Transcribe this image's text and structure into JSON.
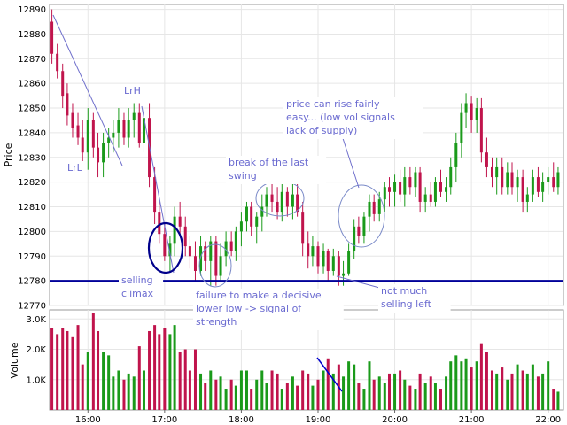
{
  "chart_data": {
    "type": "candlestick",
    "panels": [
      {
        "name": "price",
        "ylabel": "Price",
        "ylim": [
          12770,
          12892
        ],
        "yticks": [
          "12770",
          "12780",
          "12790",
          "12800",
          "12810",
          "12820",
          "12830",
          "12840",
          "12850",
          "12860",
          "12870",
          "12880",
          "12890"
        ]
      },
      {
        "name": "volume",
        "ylabel": "Volume",
        "ylim": [
          0,
          3300
        ],
        "yticks": [
          {
            "label": "1.0K",
            "value": 1000
          },
          {
            "label": "2.0K",
            "value": 2000
          },
          {
            "label": "3.0K",
            "value": 3000
          }
        ]
      }
    ],
    "x_axis": {
      "ticks": [
        "16:00",
        "17:00",
        "18:00",
        "19:00",
        "20:00",
        "21:00",
        "22:00"
      ],
      "tick_hours": [
        16,
        17,
        18,
        19,
        20,
        21,
        22
      ],
      "xlim_hours": [
        15.5,
        22.2
      ]
    },
    "colors": {
      "up": "#1a9a1a",
      "down": "#c0144c",
      "neutral": "#888888",
      "annotation": "#6a6ad0",
      "level_line": "#000099"
    },
    "reference_lines": [
      {
        "axis": "price",
        "value": 12780,
        "color": "#000099"
      }
    ],
    "bars": [
      {
        "t": 15.53,
        "o": 12885,
        "h": 12890,
        "l": 12868,
        "c": 12872,
        "v": 2700
      },
      {
        "t": 15.6,
        "o": 12872,
        "h": 12876,
        "l": 12862,
        "c": 12865,
        "v": 2500
      },
      {
        "t": 15.67,
        "o": 12865,
        "h": 12868,
        "l": 12850,
        "c": 12855,
        "v": 2700
      },
      {
        "t": 15.73,
        "o": 12856,
        "h": 12860,
        "l": 12843,
        "c": 12847,
        "v": 2600
      },
      {
        "t": 15.8,
        "o": 12848,
        "h": 12852,
        "l": 12838,
        "c": 12842,
        "v": 2400
      },
      {
        "t": 15.87,
        "o": 12843,
        "h": 12848,
        "l": 12835,
        "c": 12838,
        "v": 2800
      },
      {
        "t": 15.93,
        "o": 12838,
        "h": 12845,
        "l": 12828,
        "c": 12832,
        "v": 1500
      },
      {
        "t": 16.0,
        "o": 12832,
        "h": 12850,
        "l": 12825,
        "c": 12845,
        "v": 1900
      },
      {
        "t": 16.07,
        "o": 12845,
        "h": 12848,
        "l": 12830,
        "c": 12834,
        "v": 3200
      },
      {
        "t": 16.13,
        "o": 12834,
        "h": 12840,
        "l": 12822,
        "c": 12828,
        "v": 2600
      },
      {
        "t": 16.2,
        "o": 12828,
        "h": 12840,
        "l": 12822,
        "c": 12836,
        "v": 1900
      },
      {
        "t": 16.27,
        "o": 12836,
        "h": 12842,
        "l": 12830,
        "c": 12838,
        "v": 1800
      },
      {
        "t": 16.33,
        "o": 12838,
        "h": 12845,
        "l": 12832,
        "c": 12840,
        "v": 1100
      },
      {
        "t": 16.4,
        "o": 12840,
        "h": 12850,
        "l": 12834,
        "c": 12845,
        "v": 1300
      },
      {
        "t": 16.47,
        "o": 12845,
        "h": 12848,
        "l": 12835,
        "c": 12838,
        "v": 1000
      },
      {
        "t": 16.53,
        "o": 12838,
        "h": 12850,
        "l": 12834,
        "c": 12845,
        "v": 1200
      },
      {
        "t": 16.6,
        "o": 12845,
        "h": 12852,
        "l": 12838,
        "c": 12848,
        "v": 1100
      },
      {
        "t": 16.67,
        "o": 12848,
        "h": 12852,
        "l": 12834,
        "c": 12836,
        "v": 2100
      },
      {
        "t": 16.73,
        "o": 12836,
        "h": 12850,
        "l": 12832,
        "c": 12846,
        "v": 1300
      },
      {
        "t": 16.8,
        "o": 12846,
        "h": 12852,
        "l": 12818,
        "c": 12822,
        "v": 2600
      },
      {
        "t": 16.87,
        "o": 12822,
        "h": 12826,
        "l": 12803,
        "c": 12808,
        "v": 2800
      },
      {
        "t": 16.93,
        "o": 12808,
        "h": 12812,
        "l": 12795,
        "c": 12799,
        "v": 2500
      },
      {
        "t": 17.0,
        "o": 12799,
        "h": 12803,
        "l": 12788,
        "c": 12790,
        "v": 2700
      },
      {
        "t": 17.07,
        "o": 12790,
        "h": 12798,
        "l": 12784,
        "c": 12795,
        "v": 2500
      },
      {
        "t": 17.13,
        "o": 12795,
        "h": 12810,
        "l": 12790,
        "c": 12806,
        "v": 2800
      },
      {
        "t": 17.2,
        "o": 12806,
        "h": 12812,
        "l": 12798,
        "c": 12802,
        "v": 1900
      },
      {
        "t": 17.27,
        "o": 12802,
        "h": 12806,
        "l": 12790,
        "c": 12794,
        "v": 2000
      },
      {
        "t": 17.33,
        "o": 12794,
        "h": 12798,
        "l": 12785,
        "c": 12790,
        "v": 1300
      },
      {
        "t": 17.4,
        "o": 12790,
        "h": 12796,
        "l": 12780,
        "c": 12784,
        "v": 2000
      },
      {
        "t": 17.47,
        "o": 12784,
        "h": 12798,
        "l": 12782,
        "c": 12794,
        "v": 1200
      },
      {
        "t": 17.53,
        "o": 12794,
        "h": 12796,
        "l": 12784,
        "c": 12788,
        "v": 900
      },
      {
        "t": 17.6,
        "o": 12788,
        "h": 12798,
        "l": 12778,
        "c": 12796,
        "v": 1300
      },
      {
        "t": 17.67,
        "o": 12796,
        "h": 12798,
        "l": 12778,
        "c": 12782,
        "v": 1000
      },
      {
        "t": 17.73,
        "o": 12782,
        "h": 12795,
        "l": 12780,
        "c": 12790,
        "v": 1100
      },
      {
        "t": 17.8,
        "o": 12790,
        "h": 12800,
        "l": 12786,
        "c": 12796,
        "v": 700
      },
      {
        "t": 17.87,
        "o": 12796,
        "h": 12800,
        "l": 12790,
        "c": 12792,
        "v": 1000
      },
      {
        "t": 17.93,
        "o": 12792,
        "h": 12802,
        "l": 12788,
        "c": 12800,
        "v": 800
      },
      {
        "t": 18.0,
        "o": 12800,
        "h": 12808,
        "l": 12794,
        "c": 12804,
        "v": 1300
      },
      {
        "t": 18.07,
        "o": 12804,
        "h": 12812,
        "l": 12800,
        "c": 12810,
        "v": 1300
      },
      {
        "t": 18.13,
        "o": 12810,
        "h": 12812,
        "l": 12798,
        "c": 12802,
        "v": 700
      },
      {
        "t": 18.2,
        "o": 12802,
        "h": 12808,
        "l": 12795,
        "c": 12806,
        "v": 1000
      },
      {
        "t": 18.27,
        "o": 12806,
        "h": 12815,
        "l": 12800,
        "c": 12810,
        "v": 1300
      },
      {
        "t": 18.33,
        "o": 12810,
        "h": 12818,
        "l": 12806,
        "c": 12815,
        "v": 900
      },
      {
        "t": 18.4,
        "o": 12815,
        "h": 12820,
        "l": 12808,
        "c": 12812,
        "v": 1300
      },
      {
        "t": 18.47,
        "o": 12812,
        "h": 12818,
        "l": 12805,
        "c": 12808,
        "v": 1200
      },
      {
        "t": 18.53,
        "o": 12808,
        "h": 12820,
        "l": 12804,
        "c": 12816,
        "v": 700
      },
      {
        "t": 18.6,
        "o": 12816,
        "h": 12818,
        "l": 12806,
        "c": 12810,
        "v": 900
      },
      {
        "t": 18.67,
        "o": 12810,
        "h": 12820,
        "l": 12805,
        "c": 12815,
        "v": 1100
      },
      {
        "t": 18.73,
        "o": 12815,
        "h": 12820,
        "l": 12806,
        "c": 12808,
        "v": 800
      },
      {
        "t": 18.8,
        "o": 12808,
        "h": 12812,
        "l": 12790,
        "c": 12795,
        "v": 1300
      },
      {
        "t": 18.87,
        "o": 12795,
        "h": 12800,
        "l": 12785,
        "c": 12790,
        "v": 1200
      },
      {
        "t": 18.93,
        "o": 12790,
        "h": 12798,
        "l": 12786,
        "c": 12794,
        "v": 800
      },
      {
        "t": 19.0,
        "o": 12794,
        "h": 12796,
        "l": 12783,
        "c": 12786,
        "v": 1000
      },
      {
        "t": 19.07,
        "o": 12786,
        "h": 12795,
        "l": 12783,
        "c": 12792,
        "v": 1300
      },
      {
        "t": 19.13,
        "o": 12792,
        "h": 12793,
        "l": 12780,
        "c": 12784,
        "v": 1700
      },
      {
        "t": 19.2,
        "o": 12784,
        "h": 12793,
        "l": 12782,
        "c": 12790,
        "v": 1200
      },
      {
        "t": 19.27,
        "o": 12790,
        "h": 12792,
        "l": 12778,
        "c": 12782,
        "v": 1500
      },
      {
        "t": 19.33,
        "o": 12782,
        "h": 12788,
        "l": 12778,
        "c": 12783,
        "v": 1100
      },
      {
        "t": 19.4,
        "o": 12783,
        "h": 12795,
        "l": 12782,
        "c": 12792,
        "v": 1600
      },
      {
        "t": 19.47,
        "o": 12792,
        "h": 12805,
        "l": 12789,
        "c": 12802,
        "v": 1500
      },
      {
        "t": 19.53,
        "o": 12802,
        "h": 12806,
        "l": 12795,
        "c": 12798,
        "v": 900
      },
      {
        "t": 19.6,
        "o": 12798,
        "h": 12808,
        "l": 12795,
        "c": 12806,
        "v": 700
      },
      {
        "t": 19.67,
        "o": 12806,
        "h": 12815,
        "l": 12800,
        "c": 12812,
        "v": 1600
      },
      {
        "t": 19.73,
        "o": 12812,
        "h": 12815,
        "l": 12804,
        "c": 12807,
        "v": 1000
      },
      {
        "t": 19.8,
        "o": 12807,
        "h": 12816,
        "l": 12804,
        "c": 12813,
        "v": 1100
      },
      {
        "t": 19.87,
        "o": 12813,
        "h": 12820,
        "l": 12808,
        "c": 12818,
        "v": 900
      },
      {
        "t": 19.93,
        "o": 12818,
        "h": 12822,
        "l": 12810,
        "c": 12816,
        "v": 1200
      },
      {
        "t": 20.0,
        "o": 12816,
        "h": 12823,
        "l": 12810,
        "c": 12820,
        "v": 1200
      },
      {
        "t": 20.07,
        "o": 12820,
        "h": 12825,
        "l": 12812,
        "c": 12815,
        "v": 1300
      },
      {
        "t": 20.13,
        "o": 12815,
        "h": 12826,
        "l": 12810,
        "c": 12822,
        "v": 1000
      },
      {
        "t": 20.2,
        "o": 12822,
        "h": 12826,
        "l": 12815,
        "c": 12818,
        "v": 800
      },
      {
        "t": 20.27,
        "o": 12818,
        "h": 12826,
        "l": 12814,
        "c": 12824,
        "v": 700
      },
      {
        "t": 20.33,
        "o": 12824,
        "h": 12826,
        "l": 12808,
        "c": 12812,
        "v": 1200
      },
      {
        "t": 20.4,
        "o": 12812,
        "h": 12818,
        "l": 12808,
        "c": 12815,
        "v": 900
      },
      {
        "t": 20.47,
        "o": 12815,
        "h": 12820,
        "l": 12810,
        "c": 12812,
        "v": 1100
      },
      {
        "t": 20.53,
        "o": 12812,
        "h": 12822,
        "l": 12810,
        "c": 12820,
        "v": 900
      },
      {
        "t": 20.6,
        "o": 12820,
        "h": 12825,
        "l": 12814,
        "c": 12816,
        "v": 700
      },
      {
        "t": 20.67,
        "o": 12816,
        "h": 12822,
        "l": 12812,
        "c": 12818,
        "v": 1100
      },
      {
        "t": 20.73,
        "o": 12818,
        "h": 12830,
        "l": 12815,
        "c": 12826,
        "v": 1600
      },
      {
        "t": 20.8,
        "o": 12826,
        "h": 12840,
        "l": 12820,
        "c": 12836,
        "v": 1800
      },
      {
        "t": 20.87,
        "o": 12836,
        "h": 12852,
        "l": 12830,
        "c": 12848,
        "v": 1600
      },
      {
        "t": 20.93,
        "o": 12848,
        "h": 12856,
        "l": 12842,
        "c": 12852,
        "v": 1700
      },
      {
        "t": 21.0,
        "o": 12852,
        "h": 12855,
        "l": 12840,
        "c": 12845,
        "v": 1400
      },
      {
        "t": 21.07,
        "o": 12845,
        "h": 12854,
        "l": 12840,
        "c": 12850,
        "v": 1600
      },
      {
        "t": 21.13,
        "o": 12850,
        "h": 12854,
        "l": 12828,
        "c": 12832,
        "v": 2200
      },
      {
        "t": 21.2,
        "o": 12832,
        "h": 12838,
        "l": 12822,
        "c": 12826,
        "v": 1900
      },
      {
        "t": 21.27,
        "o": 12826,
        "h": 12830,
        "l": 12818,
        "c": 12822,
        "v": 1300
      },
      {
        "t": 21.33,
        "o": 12822,
        "h": 12830,
        "l": 12815,
        "c": 12826,
        "v": 1200
      },
      {
        "t": 21.4,
        "o": 12826,
        "h": 12830,
        "l": 12815,
        "c": 12818,
        "v": 1400
      },
      {
        "t": 21.47,
        "o": 12818,
        "h": 12828,
        "l": 12815,
        "c": 12824,
        "v": 1000
      },
      {
        "t": 21.53,
        "o": 12824,
        "h": 12828,
        "l": 12815,
        "c": 12818,
        "v": 1200
      },
      {
        "t": 21.6,
        "o": 12818,
        "h": 12825,
        "l": 12812,
        "c": 12822,
        "v": 1500
      },
      {
        "t": 21.67,
        "o": 12822,
        "h": 12825,
        "l": 12808,
        "c": 12812,
        "v": 1300
      },
      {
        "t": 21.73,
        "o": 12812,
        "h": 12818,
        "l": 12808,
        "c": 12815,
        "v": 1200
      },
      {
        "t": 21.8,
        "o": 12815,
        "h": 12825,
        "l": 12812,
        "c": 12822,
        "v": 1500
      },
      {
        "t": 21.87,
        "o": 12822,
        "h": 12826,
        "l": 12814,
        "c": 12816,
        "v": 1100
      },
      {
        "t": 21.93,
        "o": 12816,
        "h": 12824,
        "l": 12812,
        "c": 12820,
        "v": 1200
      },
      {
        "t": 22.0,
        "o": 12820,
        "h": 12826,
        "l": 12815,
        "c": 12822,
        "v": 1600
      },
      {
        "t": 22.07,
        "o": 12822,
        "h": 12828,
        "l": 12816,
        "c": 12818,
        "v": 700
      },
      {
        "t": 22.13,
        "o": 12818,
        "h": 12826,
        "l": 12815,
        "c": 12824,
        "v": 600
      }
    ],
    "annotations": [
      {
        "name": "anno-lrl",
        "lines": [
          "LrL"
        ]
      },
      {
        "name": "anno-lrh",
        "lines": [
          "LrH"
        ]
      },
      {
        "name": "anno-selling-climax",
        "lines": [
          "selling",
          "climax"
        ]
      },
      {
        "name": "anno-failure-decisive",
        "lines": [
          "failure to make a decisive",
          "lower low -> signal of",
          "strength"
        ]
      },
      {
        "name": "anno-break-last-swing",
        "lines": [
          "break of the last",
          "swing"
        ]
      },
      {
        "name": "anno-price-rise",
        "lines": [
          "price can rise fairly",
          "easy... (low vol signals",
          "lack of supply)"
        ]
      },
      {
        "name": "anno-not-much-selling",
        "lines": [
          "not much",
          "selling left"
        ]
      }
    ]
  }
}
